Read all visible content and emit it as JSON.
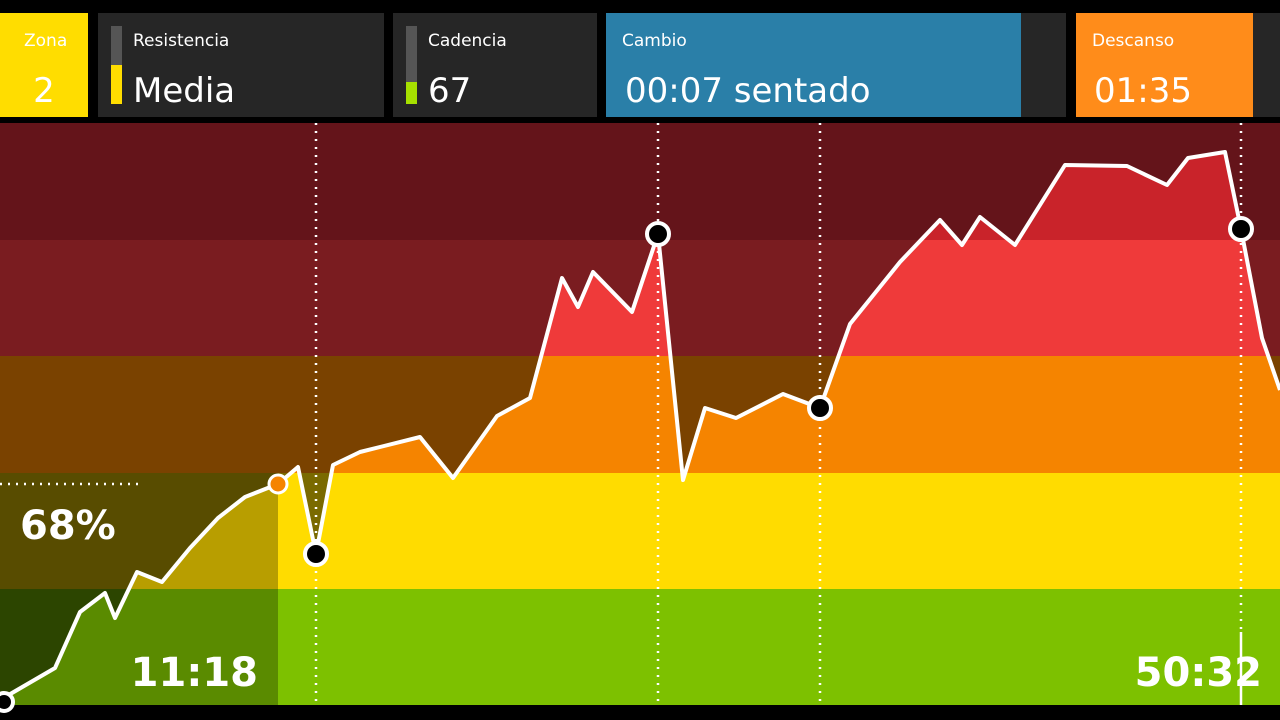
{
  "header": {
    "tiles": [
      {
        "label": "Zona",
        "value": "2"
      },
      {
        "label": "Resistencia",
        "value": "Media"
      },
      {
        "label": "Cadencia",
        "value": "67"
      },
      {
        "label": "Cambio",
        "value": "00:07 sentado"
      },
      {
        "label": "Descanso",
        "value": "01:35"
      }
    ]
  },
  "workout": {
    "effort": "68%",
    "elapsed": "11:18",
    "total": "50:32"
  }
}
